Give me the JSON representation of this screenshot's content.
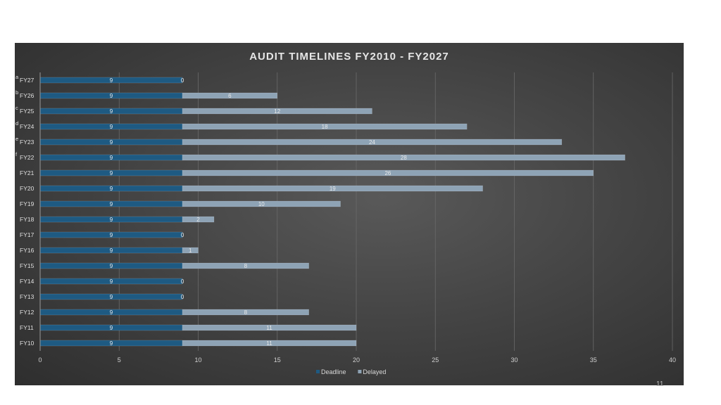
{
  "slide": {
    "page_number": "11"
  },
  "chart_data": {
    "type": "bar",
    "orientation": "horizontal",
    "stacked": true,
    "title": "AUDIT TIMELINES FY2010 - FY2027",
    "xlabel": "",
    "ylabel": "",
    "xlim": [
      0,
      40
    ],
    "x_ticks": [
      "0",
      "5",
      "10",
      "15",
      "20",
      "25",
      "30",
      "35",
      "40"
    ],
    "grid": "vertical",
    "legend_position": "bottom",
    "categories": [
      "FY27",
      "FY26",
      "FY25",
      "FY24",
      "FY23",
      "FY22",
      "FY21",
      "FY20",
      "FY19",
      "FY18",
      "FY17",
      "FY16",
      "FY15",
      "FY14",
      "FY13",
      "FY12",
      "FY11",
      "FY10"
    ],
    "footnote_markers": [
      "a",
      "b",
      "c",
      "d",
      "e",
      "f",
      "",
      "",
      "",
      "",
      "",
      "",
      "",
      "",
      "",
      "",
      "",
      ""
    ],
    "series": [
      {
        "name": "Deadline",
        "color": "#1e5a82",
        "values": [
          9,
          9,
          9,
          9,
          9,
          9,
          9,
          9,
          9,
          9,
          9,
          9,
          9,
          9,
          9,
          9,
          9,
          9
        ]
      },
      {
        "name": "Delayed",
        "color": "#8ea3b5",
        "values": [
          0,
          6,
          12,
          18,
          24,
          28,
          26,
          19,
          10,
          2,
          0,
          1,
          8,
          0,
          0,
          8,
          11,
          11
        ]
      }
    ]
  }
}
